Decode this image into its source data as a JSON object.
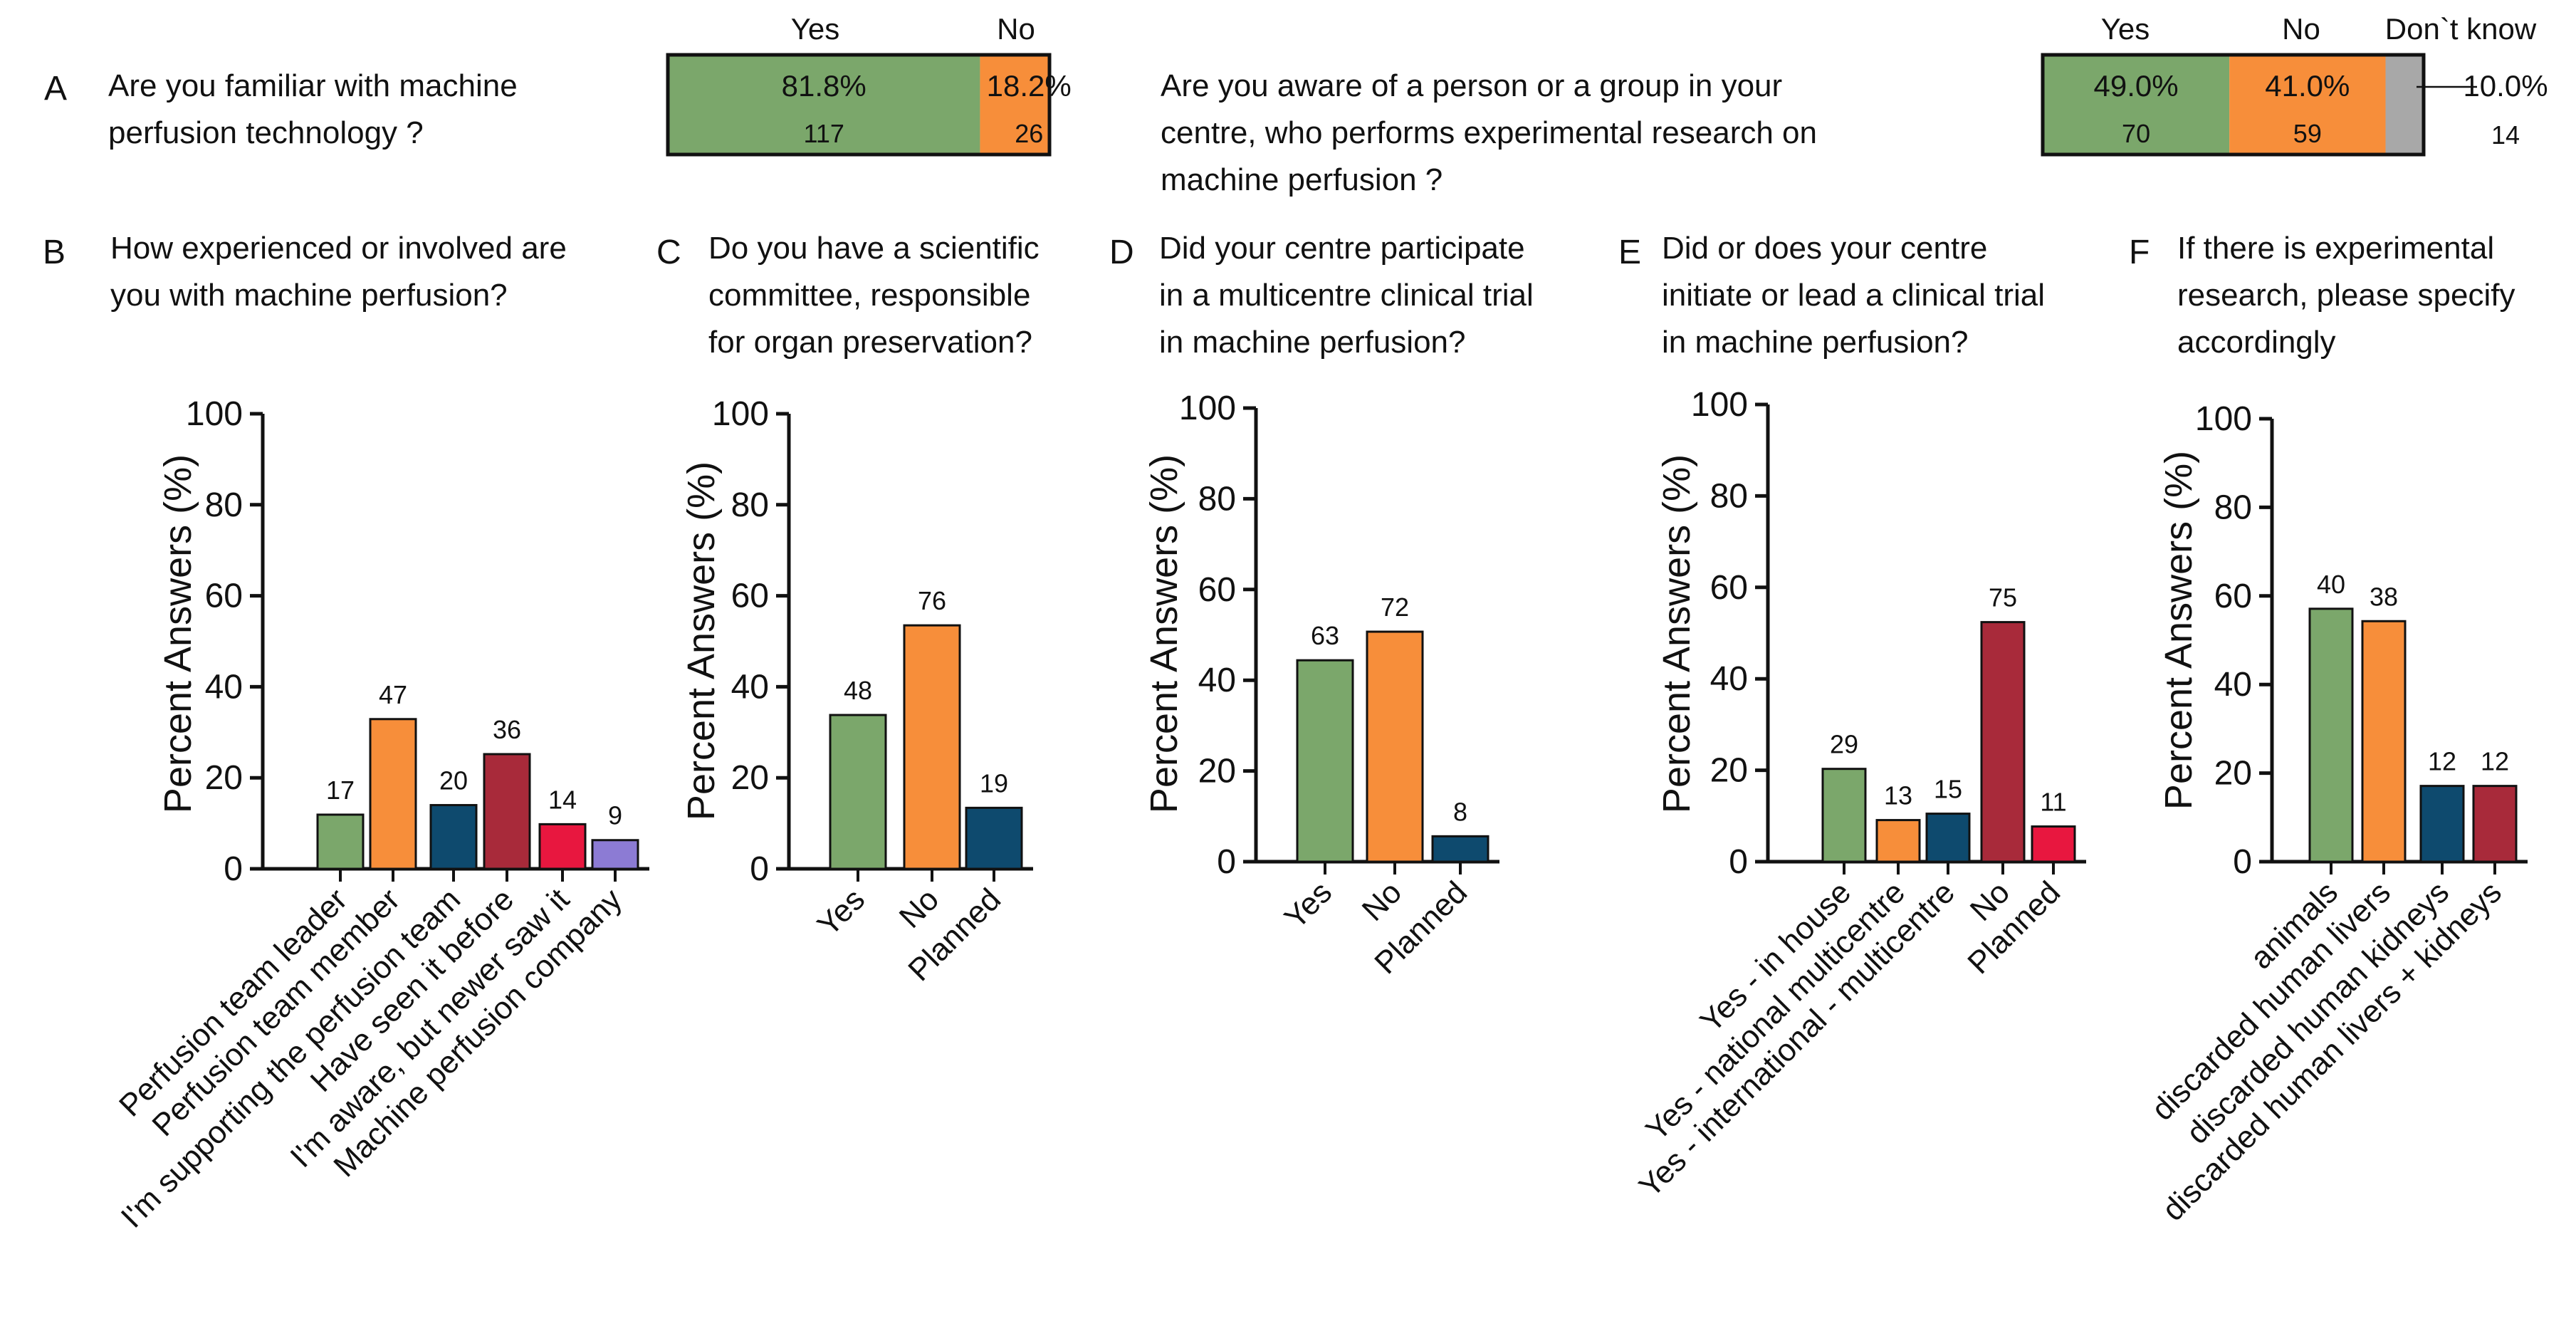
{
  "colors": {
    "green": "#7BA76B",
    "orange": "#F78E3A",
    "navy": "#0E4A6E",
    "crimson": "#A82A3A",
    "red": "#E8173F",
    "purple": "#8C7BD4",
    "gray": "#A8A8A8"
  },
  "panel_a": {
    "letter": "A",
    "q1": {
      "question_lines": [
        "Are you familiar with machine",
        "perfusion technology ?"
      ],
      "headers": [
        "Yes",
        "No"
      ],
      "segments": [
        {
          "label": "Yes",
          "percent": 81.8,
          "percent_text": "81.8%",
          "count_text": "117",
          "color": "green"
        },
        {
          "label": "No",
          "percent": 18.2,
          "percent_text": "18.2%",
          "count_text": "26",
          "color": "orange"
        }
      ]
    },
    "q2": {
      "question_lines": [
        "Are you aware of a person or a group in your",
        "centre, who performs experimental research on",
        "machine perfusion ?"
      ],
      "headers": [
        "Yes",
        "No",
        "Don`t know"
      ],
      "segments": [
        {
          "label": "Yes",
          "percent": 49.0,
          "percent_text": "49.0%",
          "count_text": "70",
          "color": "green"
        },
        {
          "label": "No",
          "percent": 41.0,
          "percent_text": "41.0%",
          "count_text": "59",
          "color": "orange"
        },
        {
          "label": "Don`t know",
          "percent": 10.0,
          "percent_text": "10.0%",
          "count_text": "14",
          "color": "gray"
        }
      ]
    }
  },
  "chart_data": [
    {
      "id": "B",
      "type": "bar",
      "title_lines": [
        "How experienced or involved are",
        "you with machine perfusion?"
      ],
      "ylabel": "Percent Answers (%)",
      "ylim": [
        0,
        100
      ],
      "yticks": [
        "0",
        "20",
        "40",
        "60",
        "80",
        "100"
      ],
      "categories": [
        "Perfusion team leader",
        "Perfusion team member",
        "I'm supporting the perfusion team",
        "Have seen it before",
        "I'm aware, but newer saw it",
        "Machine perfusion company"
      ],
      "values": [
        11.9,
        32.9,
        14.0,
        25.2,
        9.8,
        6.3
      ],
      "counts": [
        "17",
        "47",
        "20",
        "36",
        "14",
        "9"
      ],
      "colors": [
        "green",
        "orange",
        "navy",
        "crimson",
        "red",
        "purple"
      ]
    },
    {
      "id": "C",
      "type": "bar",
      "title_lines": [
        "Do you have a scientific",
        "committee, responsible",
        "for organ preservation?"
      ],
      "ylabel": "Percent Answers (%)",
      "ylim": [
        0,
        100
      ],
      "yticks": [
        "0",
        "20",
        "40",
        "60",
        "80",
        "100"
      ],
      "categories": [
        "Yes",
        "No",
        "Planned"
      ],
      "values": [
        33.8,
        53.5,
        13.4
      ],
      "counts": [
        "48",
        "76",
        "19"
      ],
      "colors": [
        "green",
        "orange",
        "navy"
      ]
    },
    {
      "id": "D",
      "type": "bar",
      "title_lines": [
        "Did your centre participate",
        "in a multicentre clinical trial",
        "in machine perfusion?"
      ],
      "ylabel": "Percent Answers (%)",
      "ylim": [
        0,
        100
      ],
      "yticks": [
        "0",
        "20",
        "40",
        "60",
        "80",
        "100"
      ],
      "categories": [
        "Yes",
        "No",
        "Planned"
      ],
      "values": [
        44.4,
        50.7,
        5.6
      ],
      "counts": [
        "63",
        "72",
        "8"
      ],
      "colors": [
        "green",
        "orange",
        "navy"
      ]
    },
    {
      "id": "E",
      "type": "bar",
      "title_lines": [
        "Did or does your centre",
        "initiate or lead a clinical trial",
        "in machine perfusion?"
      ],
      "ylabel": "Percent Answers (%)",
      "ylim": [
        0,
        100
      ],
      "yticks": [
        "0",
        "20",
        "40",
        "60",
        "80",
        "100"
      ],
      "categories": [
        "Yes - in house",
        "Yes - national multicentre",
        "Yes - international - multicentre",
        "No",
        "Planned"
      ],
      "values": [
        20.3,
        9.1,
        10.5,
        52.4,
        7.7
      ],
      "counts": [
        "29",
        "13",
        "15",
        "75",
        "11"
      ],
      "colors": [
        "green",
        "orange",
        "navy",
        "crimson",
        "red"
      ]
    },
    {
      "id": "F",
      "type": "bar",
      "title_lines": [
        "If there is experimental",
        "research, please specify",
        "accordingly"
      ],
      "ylabel": "Percent Answers (%)",
      "ylim": [
        0,
        100
      ],
      "yticks": [
        "0",
        "20",
        "40",
        "60",
        "80",
        "100"
      ],
      "categories": [
        "animals",
        "discarded human livers",
        "discarded human kidneys",
        "discarded human livers + kidneys"
      ],
      "values": [
        57.1,
        54.3,
        17.1,
        17.1
      ],
      "counts": [
        "40",
        "38",
        "12",
        "12"
      ],
      "colors": [
        "green",
        "orange",
        "navy",
        "crimson"
      ]
    }
  ]
}
